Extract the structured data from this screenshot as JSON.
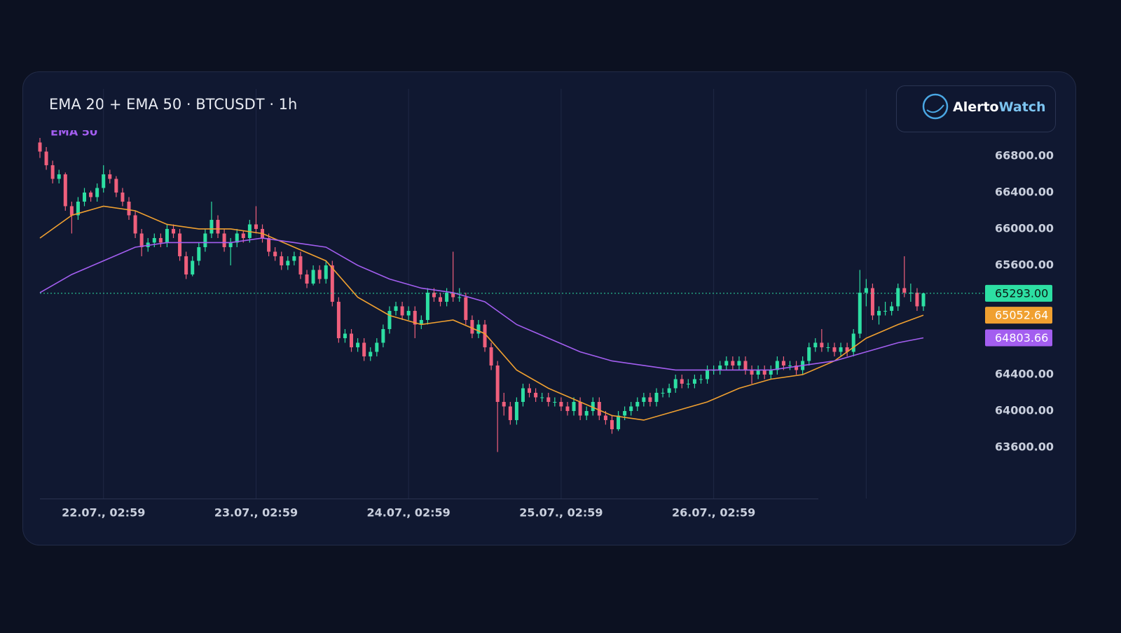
{
  "chart_data": {
    "type": "candlestick",
    "title": "EMA 20 + EMA 50 · BTCUSDT · 1h",
    "logo": {
      "parts": [
        "Alerto",
        "Watch"
      ]
    },
    "up_color": "#2ddfa3",
    "down_color": "#ef5f7c",
    "xlim": [
      0,
      139
    ],
    "xticks": [
      {
        "value": 10,
        "label": "22.07., 02:59"
      },
      {
        "value": 34,
        "label": "23.07., 02:59"
      },
      {
        "value": 58,
        "label": "24.07., 02:59"
      },
      {
        "value": 82,
        "label": "25.07., 02:59"
      },
      {
        "value": 106,
        "label": "26.07., 02:59"
      },
      {
        "value": 130,
        "label": null
      }
    ],
    "ylim": [
      63246,
      67092
    ],
    "yticks": [
      {
        "value": 63600,
        "label": "63600.00"
      },
      {
        "value": 64000,
        "label": "64000.00"
      },
      {
        "value": 64400,
        "label": "64400.00"
      },
      {
        "value": 65600,
        "label": "65600.00"
      },
      {
        "value": 66000,
        "label": "66000.00"
      },
      {
        "value": 66400,
        "label": "66400.00"
      },
      {
        "value": 66800,
        "label": "66800.00"
      }
    ],
    "candles": [
      [
        66950,
        67000,
        66780,
        66850
      ],
      [
        66850,
        66900,
        66650,
        66700
      ],
      [
        66700,
        66750,
        66500,
        66550
      ],
      [
        66550,
        66650,
        66500,
        66600
      ],
      [
        66600,
        66620,
        66200,
        66250
      ],
      [
        66250,
        66300,
        65950,
        66150
      ],
      [
        66150,
        66350,
        66100,
        66300
      ],
      [
        66300,
        66450,
        66250,
        66400
      ],
      [
        66400,
        66420,
        66300,
        66350
      ],
      [
        66350,
        66500,
        66300,
        66450
      ],
      [
        66450,
        66700,
        66400,
        66600
      ],
      [
        66600,
        66650,
        66500,
        66550
      ],
      [
        66550,
        66580,
        66350,
        66400
      ],
      [
        66400,
        66450,
        66250,
        66300
      ],
      [
        66300,
        66350,
        66100,
        66150
      ],
      [
        66150,
        66200,
        65900,
        65950
      ],
      [
        65950,
        66000,
        65700,
        65800
      ],
      [
        65800,
        65900,
        65750,
        65850
      ],
      [
        65850,
        65950,
        65800,
        65900
      ],
      [
        65900,
        65950,
        65800,
        65850
      ],
      [
        65850,
        66050,
        65800,
        66000
      ],
      [
        66000,
        66050,
        65900,
        65950
      ],
      [
        65950,
        66000,
        65650,
        65700
      ],
      [
        65700,
        65750,
        65450,
        65500
      ],
      [
        65500,
        65700,
        65480,
        65650
      ],
      [
        65650,
        65850,
        65600,
        65800
      ],
      [
        65800,
        66000,
        65750,
        65950
      ],
      [
        65950,
        66300,
        65900,
        66100
      ],
      [
        66100,
        66150,
        65900,
        65950
      ],
      [
        65950,
        66000,
        65750,
        65800
      ],
      [
        65800,
        65900,
        65600,
        65850
      ],
      [
        65850,
        66000,
        65800,
        65950
      ],
      [
        65950,
        65980,
        65850,
        65900
      ],
      [
        65900,
        66100,
        65850,
        66050
      ],
      [
        66050,
        66250,
        65950,
        66000
      ],
      [
        66000,
        66050,
        65850,
        65900
      ],
      [
        65900,
        65950,
        65700,
        65750
      ],
      [
        65750,
        65800,
        65650,
        65700
      ],
      [
        65700,
        65750,
        65550,
        65600
      ],
      [
        65600,
        65700,
        65550,
        65650
      ],
      [
        65650,
        65750,
        65600,
        65700
      ],
      [
        65700,
        65750,
        65450,
        65500
      ],
      [
        65500,
        65550,
        65350,
        65400
      ],
      [
        65400,
        65600,
        65380,
        65550
      ],
      [
        65550,
        65600,
        65400,
        65450
      ],
      [
        65450,
        65650,
        65400,
        65600
      ],
      [
        65600,
        65650,
        65150,
        65200
      ],
      [
        65200,
        65250,
        64750,
        64800
      ],
      [
        64800,
        64900,
        64750,
        64850
      ],
      [
        64850,
        64900,
        64650,
        64700
      ],
      [
        64700,
        64800,
        64650,
        64750
      ],
      [
        64750,
        64800,
        64550,
        64600
      ],
      [
        64600,
        64700,
        64550,
        64650
      ],
      [
        64650,
        64800,
        64600,
        64750
      ],
      [
        64750,
        64950,
        64700,
        64900
      ],
      [
        64900,
        65150,
        64850,
        65100
      ],
      [
        65100,
        65200,
        65050,
        65150
      ],
      [
        65150,
        65200,
        65000,
        65050
      ],
      [
        65050,
        65150,
        65000,
        65100
      ],
      [
        65100,
        65150,
        64800,
        64950
      ],
      [
        64950,
        65050,
        64900,
        65000
      ],
      [
        65000,
        65350,
        64950,
        65300
      ],
      [
        65300,
        65350,
        65200,
        65250
      ],
      [
        65250,
        65300,
        65150,
        65200
      ],
      [
        65200,
        65350,
        65150,
        65300
      ],
      [
        65300,
        65750,
        65200,
        65250
      ],
      [
        65250,
        65350,
        65200,
        65250
      ],
      [
        65250,
        65300,
        64950,
        65000
      ],
      [
        65000,
        65050,
        64800,
        64850
      ],
      [
        64850,
        65000,
        64800,
        64950
      ],
      [
        64950,
        65000,
        64650,
        64700
      ],
      [
        64700,
        64750,
        64450,
        64500
      ],
      [
        64500,
        64550,
        63550,
        64100
      ],
      [
        64100,
        64200,
        63950,
        64050
      ],
      [
        64050,
        64100,
        63850,
        63900
      ],
      [
        63900,
        64150,
        63850,
        64100
      ],
      [
        64100,
        64300,
        64050,
        64250
      ],
      [
        64250,
        64300,
        64150,
        64200
      ],
      [
        64200,
        64250,
        64100,
        64150
      ],
      [
        64150,
        64200,
        64100,
        64150
      ],
      [
        64150,
        64200,
        64050,
        64100
      ],
      [
        64100,
        64150,
        64050,
        64100
      ],
      [
        64100,
        64150,
        64000,
        64050
      ],
      [
        64050,
        64100,
        63950,
        64000
      ],
      [
        64000,
        64150,
        63950,
        64100
      ],
      [
        64100,
        64150,
        63900,
        63950
      ],
      [
        63950,
        64050,
        63900,
        64000
      ],
      [
        64000,
        64150,
        63950,
        64100
      ],
      [
        64100,
        64150,
        63900,
        63950
      ],
      [
        63950,
        64000,
        63850,
        63900
      ],
      [
        63900,
        63950,
        63750,
        63800
      ],
      [
        63800,
        64000,
        63780,
        63950
      ],
      [
        63950,
        64050,
        63900,
        64000
      ],
      [
        64000,
        64100,
        63950,
        64050
      ],
      [
        64050,
        64150,
        64000,
        64100
      ],
      [
        64100,
        64200,
        64050,
        64150
      ],
      [
        64150,
        64200,
        64050,
        64100
      ],
      [
        64100,
        64250,
        64050,
        64200
      ],
      [
        64200,
        64250,
        64150,
        64200
      ],
      [
        64200,
        64300,
        64150,
        64250
      ],
      [
        64250,
        64400,
        64200,
        64350
      ],
      [
        64350,
        64400,
        64250,
        64300
      ],
      [
        64300,
        64350,
        64250,
        64300
      ],
      [
        64300,
        64400,
        64250,
        64350
      ],
      [
        64350,
        64400,
        64300,
        64350
      ],
      [
        64350,
        64500,
        64300,
        64450
      ],
      [
        64450,
        64500,
        64400,
        64450
      ],
      [
        64450,
        64550,
        64400,
        64500
      ],
      [
        64500,
        64600,
        64450,
        64550
      ],
      [
        64550,
        64600,
        64450,
        64500
      ],
      [
        64500,
        64600,
        64450,
        64550
      ],
      [
        64550,
        64600,
        64400,
        64450
      ],
      [
        64450,
        64500,
        64300,
        64400
      ],
      [
        64400,
        64500,
        64350,
        64450
      ],
      [
        64450,
        64500,
        64350,
        64400
      ],
      [
        64400,
        64500,
        64350,
        64450
      ],
      [
        64450,
        64600,
        64400,
        64550
      ],
      [
        64550,
        64600,
        64450,
        64500
      ],
      [
        64500,
        64550,
        64450,
        64500
      ],
      [
        64500,
        64550,
        64400,
        64450
      ],
      [
        64450,
        64600,
        64400,
        64550
      ],
      [
        64550,
        64750,
        64500,
        64700
      ],
      [
        64700,
        64800,
        64650,
        64750
      ],
      [
        64750,
        64900,
        64650,
        64700
      ],
      [
        64700,
        64750,
        64650,
        64700
      ],
      [
        64700,
        64750,
        64600,
        64650
      ],
      [
        64650,
        64750,
        64600,
        64700
      ],
      [
        64700,
        64750,
        64600,
        64650
      ],
      [
        64650,
        64900,
        64600,
        64850
      ],
      [
        64850,
        65550,
        64800,
        65300
      ],
      [
        65300,
        65450,
        65150,
        65350
      ],
      [
        65350,
        65400,
        65000,
        65050
      ],
      [
        65050,
        65150,
        64950,
        65100
      ],
      [
        65100,
        65200,
        65050,
        65100
      ],
      [
        65100,
        65200,
        65050,
        65150
      ],
      [
        65150,
        65400,
        65100,
        65350
      ],
      [
        65350,
        65700,
        65250,
        65300
      ],
      [
        65300,
        65400,
        65200,
        65300
      ],
      [
        65300,
        65350,
        65100,
        65150
      ],
      [
        65150,
        65300,
        65100,
        65293
      ]
    ],
    "series": [
      {
        "name": "EMA 20",
        "color": "#f0a030",
        "x": [
          0,
          5,
          10,
          15,
          20,
          25,
          30,
          35,
          40,
          45,
          50,
          55,
          60,
          65,
          70,
          75,
          80,
          85,
          90,
          95,
          100,
          105,
          110,
          115,
          120,
          125,
          130,
          135,
          139
        ],
        "values": [
          65900,
          66150,
          66250,
          66200,
          66050,
          66000,
          66000,
          65950,
          65800,
          65650,
          65250,
          65050,
          64950,
          65000,
          64850,
          64450,
          64250,
          64100,
          63950,
          63900,
          64000,
          64100,
          64250,
          64350,
          64400,
          64550,
          64800,
          64950,
          65052.64
        ]
      },
      {
        "name": "EMA 50",
        "color": "#a35ef0",
        "x": [
          0,
          5,
          10,
          15,
          20,
          25,
          30,
          35,
          40,
          45,
          50,
          55,
          60,
          65,
          70,
          75,
          80,
          85,
          90,
          95,
          100,
          105,
          110,
          115,
          120,
          125,
          130,
          135,
          139
        ],
        "values": [
          65300,
          65500,
          65650,
          65800,
          65850,
          65850,
          65850,
          65900,
          65850,
          65800,
          65600,
          65450,
          65350,
          65300,
          65200,
          64950,
          64800,
          64650,
          64550,
          64500,
          64450,
          64450,
          64450,
          64450,
          64500,
          64550,
          64650,
          64750,
          64803.66
        ]
      }
    ],
    "price_labels": [
      {
        "value": 65293,
        "label": "65293.00",
        "color": "#2ddfa3",
        "text_color": "#0b1a14"
      },
      {
        "value": 65052.64,
        "label": "65052.64",
        "color": "#f0a030",
        "text_color": "#ffffff"
      },
      {
        "value": 64803.66,
        "label": "64803.66",
        "color": "#a35ef0",
        "text_color": "#ffffff"
      }
    ]
  }
}
